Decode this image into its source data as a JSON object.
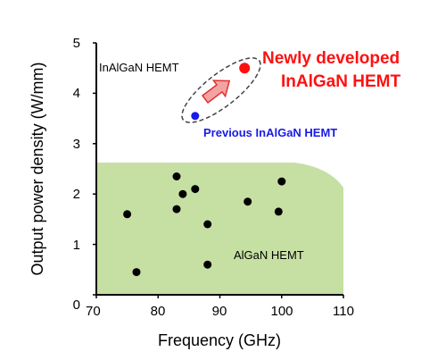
{
  "chart_data": {
    "type": "scatter",
    "xlabel": "Frequency (GHz)",
    "ylabel": "Output power density (W/mm)",
    "xlim": [
      70,
      110
    ],
    "ylim": [
      0,
      5
    ],
    "xticks": [
      "70",
      "80",
      "90",
      "100",
      "110"
    ],
    "yticks": [
      "0",
      "1",
      "2",
      "3",
      "4",
      "5"
    ],
    "grid": false,
    "series": [
      {
        "name": "AlGaN HEMT",
        "color": "#000000",
        "points": [
          {
            "x": 75,
            "y": 1.6
          },
          {
            "x": 76.5,
            "y": 0.45
          },
          {
            "x": 83,
            "y": 2.35
          },
          {
            "x": 83,
            "y": 1.7
          },
          {
            "x": 84,
            "y": 2.0
          },
          {
            "x": 86,
            "y": 2.1
          },
          {
            "x": 88,
            "y": 1.4
          },
          {
            "x": 88,
            "y": 0.6
          },
          {
            "x": 94.5,
            "y": 1.85
          },
          {
            "x": 99.5,
            "y": 1.65
          },
          {
            "x": 100,
            "y": 2.25
          }
        ]
      },
      {
        "name": "Previous InAlGaN HEMT",
        "color": "#1a1ae6",
        "points": [
          {
            "x": 86,
            "y": 3.55
          }
        ]
      },
      {
        "name": "Newly developed InAlGaN HEMT",
        "color": "#ff1010",
        "points": [
          {
            "x": 94,
            "y": 4.5
          }
        ]
      }
    ],
    "annotations": {
      "inalgan_region": "InAlGaN HEMT",
      "algan_region": "AlGaN HEMT",
      "new_line1": "Newly developed",
      "new_line2": "InAlGaN HEMT",
      "previous": "Previous InAlGaN HEMT"
    },
    "colors": {
      "algan_region": "#c6e0a4",
      "arrow_fill": "#f4a3a3",
      "arrow_stroke": "#e03030"
    }
  }
}
